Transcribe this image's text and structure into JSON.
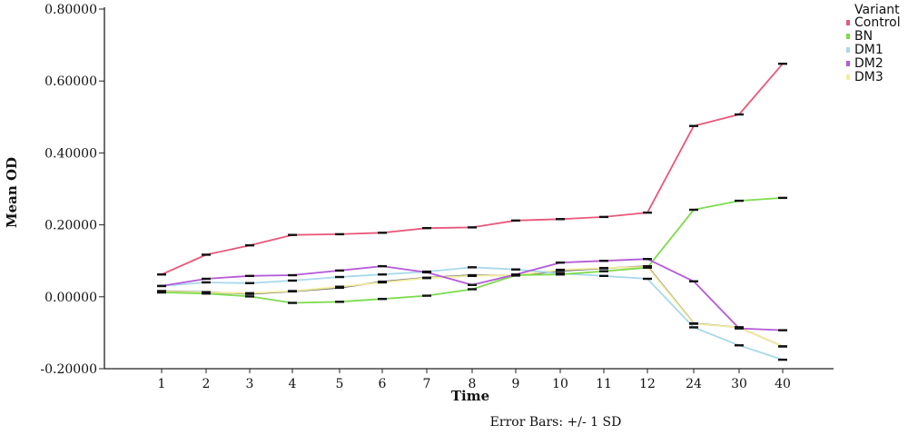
{
  "chart_data": {
    "type": "line",
    "xlabel": "Time",
    "ylabel": "Mean OD",
    "note": "Error Bars: +/- 1 SD",
    "legend_title": "Variant",
    "legend_position": "top-right",
    "categories": [
      "1",
      "2",
      "3",
      "4",
      "5",
      "6",
      "7",
      "8",
      "9",
      "10",
      "11",
      "12",
      "24",
      "30",
      "40"
    ],
    "yticks": [
      "-0.20000",
      "0.00000",
      "0.20000",
      "0.40000",
      "0.60000",
      "0.80000"
    ],
    "ylim": [
      -0.2,
      0.8
    ],
    "grid": false,
    "series": [
      {
        "name": "Control",
        "color": "#e8587a",
        "values": [
          0.062,
          0.117,
          0.143,
          0.172,
          0.174,
          0.178,
          0.191,
          0.193,
          0.212,
          0.216,
          0.222,
          0.234,
          0.475,
          0.507,
          0.648
        ]
      },
      {
        "name": "BN",
        "color": "#7ddc4e",
        "values": [
          0.012,
          0.009,
          0.001,
          -0.017,
          -0.014,
          -0.006,
          0.003,
          0.021,
          0.06,
          0.062,
          0.071,
          0.081,
          0.242,
          0.267,
          0.275
        ]
      },
      {
        "name": "DM1",
        "color": "#a9d8ec",
        "values": [
          0.03,
          0.04,
          0.038,
          0.045,
          0.055,
          0.062,
          0.07,
          0.082,
          0.076,
          0.065,
          0.058,
          0.05,
          -0.085,
          -0.135,
          -0.175
        ]
      },
      {
        "name": "DM2",
        "color": "#b45ad8",
        "values": [
          0.03,
          0.05,
          0.058,
          0.06,
          0.073,
          0.085,
          0.068,
          0.033,
          0.062,
          0.095,
          0.1,
          0.105,
          0.043,
          -0.088,
          -0.093
        ]
      },
      {
        "name": "DM3",
        "color": "#f3eda0",
        "values": [
          0.015,
          0.012,
          0.01,
          0.016,
          0.028,
          0.04,
          0.052,
          0.058,
          0.06,
          0.075,
          0.08,
          0.083,
          -0.075,
          -0.085,
          -0.138
        ]
      }
    ],
    "extra_line": {
      "color": "#6d6d6d",
      "values": [
        0.016,
        0.013,
        0.008,
        0.015,
        0.025,
        0.042,
        0.053,
        0.06,
        0.059,
        0.072,
        0.079,
        0.085,
        -0.074,
        -0.085,
        -0.138
      ]
    }
  }
}
